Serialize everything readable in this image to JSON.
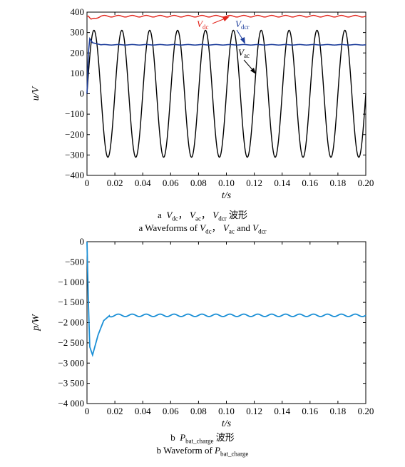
{
  "chart_data": [
    {
      "type": "line",
      "title": "",
      "xlabel": "t/s",
      "ylabel": "u/V",
      "xlim": [
        0,
        0.2
      ],
      "ylim": [
        -400,
        400
      ],
      "xticks": [
        "0",
        "0.02",
        "0.04",
        "0.06",
        "0.08",
        "0.10",
        "0.12",
        "0.14",
        "0.16",
        "0.18",
        "0.20"
      ],
      "yticks": [
        "400",
        "300",
        "200",
        "100",
        "0",
        "−100",
        "−200",
        "−300",
        "−400"
      ],
      "grid": false,
      "series": [
        {
          "name": "V_dc",
          "color": "#e2231a",
          "description_values": {
            "steady": 380,
            "ripple": 5,
            "ripple_freq_hz": 100,
            "dip_t": 0.003,
            "dip_v": 360
          },
          "x": [
            0,
            0.001,
            0.002,
            0.003,
            0.005,
            0.01,
            0.05,
            0.1,
            0.15,
            0.2
          ],
          "values": [
            380,
            378,
            368,
            362,
            370,
            380,
            380,
            380,
            380,
            380
          ]
        },
        {
          "name": "V_dcr",
          "color": "#1f3f9c",
          "x": [
            0,
            0.001,
            0.002,
            0.004,
            0.01,
            0.05,
            0.1,
            0.15,
            0.2
          ],
          "values": [
            0,
            200,
            270,
            250,
            240,
            240,
            240,
            240,
            240
          ]
        },
        {
          "name": "V_ac",
          "color": "#000000",
          "amplitude": 311,
          "frequency_hz": 50,
          "x": [
            0,
            0.005,
            0.01,
            0.015,
            0.02,
            0.2
          ],
          "values": [
            0,
            311,
            0,
            -311,
            0,
            0
          ]
        }
      ],
      "annotations": {
        "vdc": {
          "main": "V",
          "sub": "dc"
        },
        "vdcr": {
          "main": "V",
          "sub": "dcr"
        },
        "vac": {
          "main": "V",
          "sub": "ac"
        }
      }
    },
    {
      "type": "line",
      "title": "",
      "xlabel": "t/s",
      "ylabel": "p/W",
      "xlim": [
        0,
        0.2
      ],
      "ylim": [
        -4000,
        0
      ],
      "xticks": [
        "0",
        "0.02",
        "0.04",
        "0.06",
        "0.08",
        "0.10",
        "0.12",
        "0.14",
        "0.16",
        "0.18",
        "0.20"
      ],
      "yticks": [
        "0",
        "−500",
        "−1 000",
        "−1 500",
        "−2 000",
        "−2 500",
        "−3 000",
        "−3 500",
        "−4 000"
      ],
      "grid": false,
      "series": [
        {
          "name": "P_bat_charge",
          "color": "#1a8fd6",
          "x": [
            0,
            0.001,
            0.002,
            0.004,
            0.008,
            0.012,
            0.016,
            0.02,
            0.05,
            0.1,
            0.15,
            0.2
          ],
          "values": [
            0,
            -1500,
            -2600,
            -2800,
            -2300,
            -1950,
            -1830,
            -1820,
            -1820,
            -1820,
            -1820,
            -1820
          ],
          "ripple": 30,
          "ripple_freq_hz": 100
        }
      ]
    }
  ],
  "captions": {
    "top_cn": {
      "prefix": "a",
      "v1": "V",
      "v1sub": "dc",
      "sep": "，",
      "v2": "V",
      "v2sub": "ac",
      "v3": "V",
      "v3sub": "dcr",
      "suffix": "波形"
    },
    "top_en": {
      "prefix": "a  Waveforms of",
      "v1": "V",
      "v1sub": "dc",
      "sep": "，",
      "v2": "V",
      "v2sub": "ac",
      "and": "and",
      "v3": "V",
      "v3sub": "dcr"
    },
    "bottom_cn": {
      "prefix": "b",
      "p": "P",
      "psub": "bat_charge",
      "suffix": "波形"
    },
    "bottom_en": {
      "prefix": "b  Waveform of",
      "p": "P",
      "psub": "bat_charge"
    }
  }
}
